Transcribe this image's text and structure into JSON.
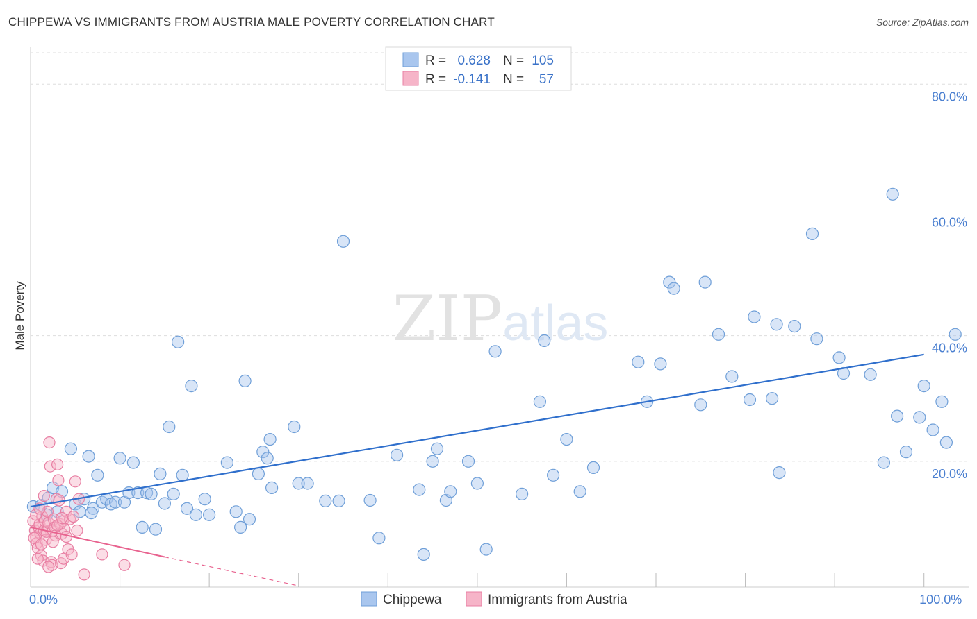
{
  "title": "CHIPPEWA VS IMMIGRANTS FROM AUSTRIA MALE POVERTY CORRELATION CHART",
  "source": "Source: ZipAtlas.com",
  "chart_data": {
    "type": "scatter",
    "ylabel": "Male Poverty",
    "xlabel": "",
    "xlim": [
      0,
      105
    ],
    "ylim": [
      0,
      85
    ],
    "x_tick_labels": [
      {
        "value": 0,
        "label": "0.0%"
      },
      {
        "value": 100,
        "label": "100.0%"
      }
    ],
    "y_tick_labels": [
      {
        "value": 20,
        "label": "20.0%"
      },
      {
        "value": 40,
        "label": "40.0%"
      },
      {
        "value": 60,
        "label": "60.0%"
      },
      {
        "value": 80,
        "label": "80.0%"
      }
    ],
    "x_minor_ticks": [
      10,
      20,
      30,
      40,
      50,
      60,
      70,
      80,
      90,
      100
    ],
    "grid": true,
    "watermark": "ZIPatlas",
    "colors": {
      "chippewa_fill": "#a9c6ee",
      "chippewa_stroke": "#6f9fd8",
      "chippewa_line": "#2f6fcc",
      "austria_fill": "#f6b4c8",
      "austria_stroke": "#e87fa3",
      "austria_line": "#e8638f",
      "tick_color": "#4a7fd0"
    },
    "legend": {
      "rows": [
        {
          "r_label": "R =",
          "r_value": "0.628",
          "n_label": "N =",
          "n_value": "105"
        },
        {
          "r_label": "R =",
          "r_value": "-0.141",
          "n_label": "N =",
          "n_value": "57"
        }
      ]
    },
    "series": [
      {
        "name": "Chippewa",
        "trend": {
          "x0": 0,
          "y0": 12.8,
          "x1": 100,
          "y1": 37.0
        },
        "points": [
          [
            0.3,
            12.8
          ],
          [
            1.2,
            13.0
          ],
          [
            2.0,
            14.2
          ],
          [
            2.5,
            15.8
          ],
          [
            3.0,
            12.0
          ],
          [
            4.5,
            22.0
          ],
          [
            5.0,
            13.2
          ],
          [
            5.5,
            12.0
          ],
          [
            6.0,
            14.0
          ],
          [
            6.5,
            20.8
          ],
          [
            7.0,
            12.5
          ],
          [
            7.5,
            17.8
          ],
          [
            8.0,
            13.5
          ],
          [
            8.5,
            14.0
          ],
          [
            9.0,
            13.2
          ],
          [
            9.5,
            13.5
          ],
          [
            10.0,
            20.5
          ],
          [
            10.5,
            13.5
          ],
          [
            11.0,
            15.0
          ],
          [
            11.5,
            19.8
          ],
          [
            12.0,
            15.0
          ],
          [
            12.5,
            9.5
          ],
          [
            13.0,
            15.0
          ],
          [
            13.5,
            14.8
          ],
          [
            14.0,
            9.2
          ],
          [
            14.5,
            18.0
          ],
          [
            15.0,
            13.3
          ],
          [
            15.5,
            25.5
          ],
          [
            16.0,
            14.8
          ],
          [
            16.5,
            39.0
          ],
          [
            17.0,
            17.8
          ],
          [
            17.5,
            12.5
          ],
          [
            18.0,
            32.0
          ],
          [
            18.5,
            11.5
          ],
          [
            19.5,
            14.0
          ],
          [
            20.0,
            11.5
          ],
          [
            22.0,
            19.8
          ],
          [
            23.0,
            12.0
          ],
          [
            23.5,
            9.5
          ],
          [
            24.0,
            32.8
          ],
          [
            24.5,
            10.8
          ],
          [
            25.5,
            18.0
          ],
          [
            26.0,
            21.5
          ],
          [
            26.5,
            20.5
          ],
          [
            26.8,
            23.5
          ],
          [
            27.0,
            15.8
          ],
          [
            29.5,
            25.5
          ],
          [
            30.0,
            16.5
          ],
          [
            31.0,
            16.5
          ],
          [
            33.0,
            13.7
          ],
          [
            34.5,
            13.7
          ],
          [
            35.0,
            55.0
          ],
          [
            38.0,
            13.8
          ],
          [
            39.0,
            7.8
          ],
          [
            41.0,
            21.0
          ],
          [
            43.5,
            15.5
          ],
          [
            44.0,
            5.2
          ],
          [
            45.0,
            20.0
          ],
          [
            45.5,
            22.0
          ],
          [
            46.5,
            13.8
          ],
          [
            47.0,
            15.2
          ],
          [
            49.0,
            20.0
          ],
          [
            50.0,
            16.5
          ],
          [
            51.0,
            6.0
          ],
          [
            52.0,
            37.5
          ],
          [
            55.0,
            14.8
          ],
          [
            57.0,
            29.5
          ],
          [
            57.5,
            39.2
          ],
          [
            58.5,
            17.8
          ],
          [
            60.0,
            23.5
          ],
          [
            61.5,
            15.2
          ],
          [
            63.0,
            19.0
          ],
          [
            68.0,
            35.8
          ],
          [
            69.0,
            29.5
          ],
          [
            70.5,
            35.5
          ],
          [
            71.5,
            48.5
          ],
          [
            72.0,
            47.5
          ],
          [
            75.0,
            29.0
          ],
          [
            75.5,
            48.5
          ],
          [
            77.0,
            40.2
          ],
          [
            78.5,
            33.5
          ],
          [
            80.5,
            29.8
          ],
          [
            81.0,
            43.0
          ],
          [
            83.0,
            30.0
          ],
          [
            83.5,
            41.8
          ],
          [
            83.8,
            18.2
          ],
          [
            85.5,
            41.5
          ],
          [
            87.5,
            56.2
          ],
          [
            88.0,
            39.5
          ],
          [
            90.5,
            36.5
          ],
          [
            91.0,
            34.0
          ],
          [
            94.0,
            33.8
          ],
          [
            95.5,
            19.8
          ],
          [
            96.5,
            62.5
          ],
          [
            97.0,
            27.2
          ],
          [
            98.0,
            21.5
          ],
          [
            99.5,
            27.0
          ],
          [
            100.0,
            32.0
          ],
          [
            101.0,
            25.0
          ],
          [
            102.0,
            29.5
          ],
          [
            102.5,
            23.0
          ],
          [
            103.5,
            40.2
          ],
          [
            1.8,
            11.5
          ],
          [
            3.5,
            15.2
          ],
          [
            6.8,
            11.8
          ]
        ]
      },
      {
        "name": "Immigrants from Austria",
        "trend": {
          "x0": 0,
          "y0": 9.5,
          "x1": 15,
          "y1": 4.8
        },
        "trend_dashed": {
          "x0": 15,
          "y0": 4.8,
          "x1": 30,
          "y1": 0.2
        },
        "points": [
          [
            0.3,
            10.5
          ],
          [
            0.5,
            9.0
          ],
          [
            0.6,
            8.0
          ],
          [
            0.7,
            7.0
          ],
          [
            0.8,
            6.2
          ],
          [
            0.9,
            9.5
          ],
          [
            1.0,
            10.0
          ],
          [
            1.1,
            8.5
          ],
          [
            1.2,
            5.0
          ],
          [
            1.3,
            11.2
          ],
          [
            1.4,
            4.2
          ],
          [
            1.5,
            9.0
          ],
          [
            1.6,
            10.5
          ],
          [
            1.7,
            7.5
          ],
          [
            1.8,
            8.8
          ],
          [
            1.9,
            12.0
          ],
          [
            2.0,
            10.2
          ],
          [
            2.1,
            23.0
          ],
          [
            2.2,
            19.2
          ],
          [
            2.3,
            4.0
          ],
          [
            2.4,
            3.5
          ],
          [
            2.5,
            9.0
          ],
          [
            2.6,
            10.8
          ],
          [
            2.7,
            9.5
          ],
          [
            2.8,
            8.2
          ],
          [
            2.9,
            14.0
          ],
          [
            3.0,
            19.5
          ],
          [
            3.1,
            17.0
          ],
          [
            3.2,
            13.8
          ],
          [
            3.3,
            10.0
          ],
          [
            3.4,
            3.8
          ],
          [
            3.5,
            8.5
          ],
          [
            3.6,
            10.5
          ],
          [
            3.7,
            4.5
          ],
          [
            3.8,
            9.2
          ],
          [
            4.0,
            12.0
          ],
          [
            4.2,
            6.0
          ],
          [
            4.4,
            10.8
          ],
          [
            4.6,
            5.2
          ],
          [
            4.8,
            11.2
          ],
          [
            5.0,
            16.8
          ],
          [
            5.2,
            9.0
          ],
          [
            5.4,
            14.0
          ],
          [
            6.0,
            2.0
          ],
          [
            8.0,
            5.2
          ],
          [
            10.5,
            3.5
          ],
          [
            0.4,
            7.8
          ],
          [
            0.6,
            11.5
          ],
          [
            0.8,
            4.5
          ],
          [
            1.0,
            12.5
          ],
          [
            1.2,
            6.8
          ],
          [
            1.5,
            14.5
          ],
          [
            2.0,
            3.2
          ],
          [
            2.5,
            7.2
          ],
          [
            3.0,
            9.8
          ],
          [
            3.5,
            11.0
          ],
          [
            4.0,
            8.0
          ]
        ]
      }
    ]
  }
}
